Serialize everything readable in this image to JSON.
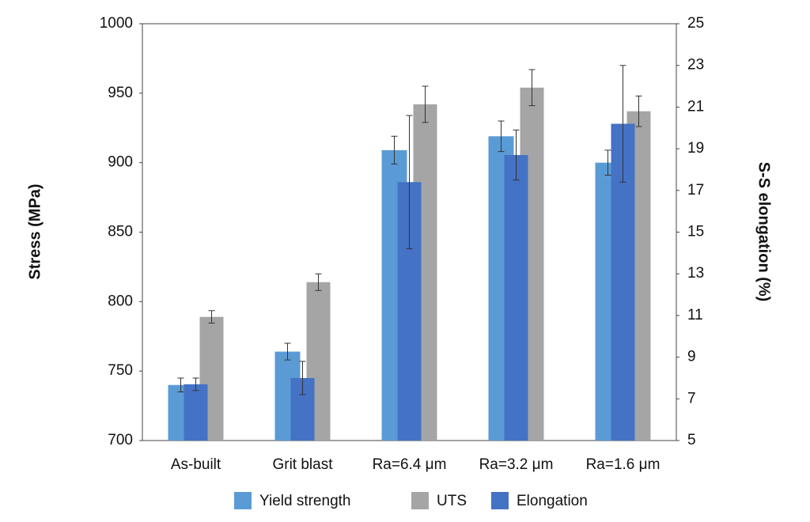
{
  "chart_data": {
    "type": "bar",
    "categories": [
      "As-built",
      "Grit blast",
      "Ra=6.4 μm",
      "Ra=3.2 μm",
      "Ra=1.6 μm"
    ],
    "y_label": "Stress (MPa)",
    "y2_label": "S-S elongation (%)",
    "ylim": [
      700,
      1000
    ],
    "yticks": [
      700,
      750,
      800,
      850,
      900,
      950,
      1000
    ],
    "y2lim": [
      5,
      25
    ],
    "y2ticks": [
      5,
      7,
      9,
      11,
      13,
      15,
      17,
      19,
      21,
      23,
      25
    ],
    "grid": false,
    "legend": "bottom",
    "series": [
      {
        "name": "Yield strength",
        "color": "#5b9bd5",
        "values": [
          740,
          764,
          909,
          919,
          900
        ],
        "error": [
          5,
          6,
          10,
          11,
          9
        ]
      },
      {
        "name": "UTS",
        "color": "#a5a5a5",
        "values": [
          789,
          814,
          942,
          954,
          937
        ],
        "error": [
          4.5,
          6,
          13,
          13,
          11
        ]
      },
      {
        "name": "Elongation",
        "color": "#4472c4",
        "axis": "y2",
        "values": [
          7.7,
          8.0,
          17.4,
          18.7,
          20.2
        ],
        "error": [
          0.3,
          0.8,
          3.2,
          1.2,
          2.8
        ]
      }
    ]
  }
}
